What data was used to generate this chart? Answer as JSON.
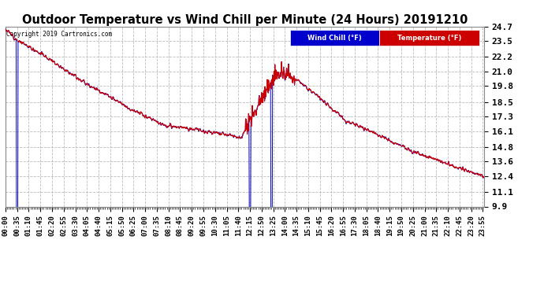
{
  "title": "Outdoor Temperature vs Wind Chill per Minute (24 Hours) 20191210",
  "copyright": "Copyright 2019 Cartronics.com",
  "ylim": [
    9.9,
    24.7
  ],
  "yticks": [
    9.9,
    11.1,
    12.4,
    13.6,
    14.8,
    16.1,
    17.3,
    18.5,
    19.8,
    21.0,
    22.2,
    23.5,
    24.7
  ],
  "temp_color": "#cc0000",
  "wind_color": "#0000cc",
  "bg_color": "white",
  "grid_color": "#bbbbbb",
  "title_fontsize": 10.5,
  "legend_wind_bg": "#0000cc",
  "legend_temp_bg": "#cc0000"
}
